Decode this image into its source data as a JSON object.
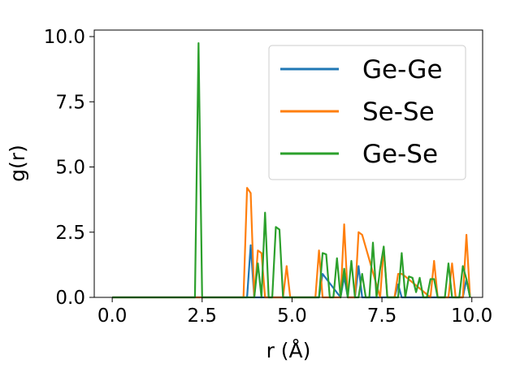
{
  "chart_data": {
    "type": "line",
    "xlabel": "r (Å)",
    "ylabel": "g(r)",
    "xlim": [
      -0.5,
      10.3
    ],
    "ylim": [
      0,
      10.25
    ],
    "xticks": [
      "0.0",
      "2.5",
      "5.0",
      "7.5",
      "10.0"
    ],
    "yticks": [
      "0.0",
      "2.5",
      "5.0",
      "7.5",
      "10.0"
    ],
    "legend_position": "top-right",
    "series": [
      {
        "name": "Ge-Ge",
        "color": "#1f77b4",
        "x": [
          0,
          3.65,
          3.75,
          3.85,
          3.95,
          5.65,
          5.75,
          5.85,
          6.35,
          6.45,
          6.55,
          6.75,
          6.85,
          6.95,
          7.85,
          7.95,
          8.05,
          9.65,
          9.75,
          9.85,
          9.95
        ],
        "y": [
          0,
          0,
          0,
          2.0,
          0,
          0,
          0,
          0.9,
          0,
          0.8,
          0,
          0,
          1.2,
          0,
          0,
          0.5,
          0,
          0,
          0,
          0.7,
          0
        ]
      },
      {
        "name": "Se-Se",
        "color": "#ff7f0e",
        "x": [
          0,
          3.55,
          3.65,
          3.75,
          3.85,
          3.95,
          4.05,
          4.15,
          4.25,
          4.55,
          4.65,
          4.75,
          4.85,
          4.95,
          5.65,
          5.75,
          5.85,
          6.35,
          6.45,
          6.55,
          6.75,
          6.85,
          6.95,
          7.45,
          7.55,
          7.65,
          7.85,
          7.95,
          8.05,
          8.15,
          8.85,
          8.95,
          9.05,
          9.35,
          9.45,
          9.55,
          9.75,
          9.85,
          9.95
        ],
        "y": [
          0,
          0,
          0,
          4.2,
          4.0,
          0,
          1.8,
          1.7,
          0,
          0,
          0,
          0,
          1.2,
          0,
          0,
          1.8,
          0,
          0,
          2.8,
          0,
          0,
          2.5,
          2.4,
          0,
          1.9,
          0,
          0,
          0.9,
          0.9,
          0.8,
          0,
          1.4,
          0,
          0,
          1.3,
          0,
          0,
          2.4,
          0
        ]
      },
      {
        "name": "Ge-Se",
        "color": "#2ca02c",
        "x": [
          0,
          2.3,
          2.4,
          2.5,
          3.95,
          4.05,
          4.15,
          4.25,
          4.35,
          4.45,
          4.55,
          4.65,
          4.75,
          4.85,
          5.65,
          5.75,
          5.85,
          5.95,
          6.05,
          6.15,
          6.25,
          6.35,
          6.45,
          6.55,
          6.65,
          6.75,
          6.85,
          6.95,
          7.05,
          7.15,
          7.25,
          7.35,
          7.45,
          7.55,
          7.65,
          7.75,
          7.85,
          7.95,
          8.05,
          8.15,
          8.25,
          8.35,
          8.45,
          8.55,
          8.65,
          8.75,
          8.85,
          8.95,
          9.05,
          9.15,
          9.25,
          9.35,
          9.45,
          9.55,
          9.65,
          9.75,
          9.85,
          9.95
        ],
        "y": [
          0,
          0,
          9.75,
          0,
          0,
          1.3,
          0,
          3.25,
          0,
          0,
          2.7,
          2.6,
          0,
          0,
          0,
          0,
          1.7,
          1.65,
          0,
          0,
          1.5,
          0,
          1.1,
          0,
          1.4,
          0,
          0,
          0.9,
          0,
          0,
          2.1,
          0,
          1.1,
          1.95,
          0,
          0,
          0,
          0,
          1.7,
          0,
          0.8,
          0.75,
          0.2,
          0.75,
          0,
          0,
          0.7,
          0.7,
          0,
          0,
          0,
          1.3,
          0,
          0,
          0,
          1.2,
          0.7,
          0
        ]
      }
    ]
  }
}
